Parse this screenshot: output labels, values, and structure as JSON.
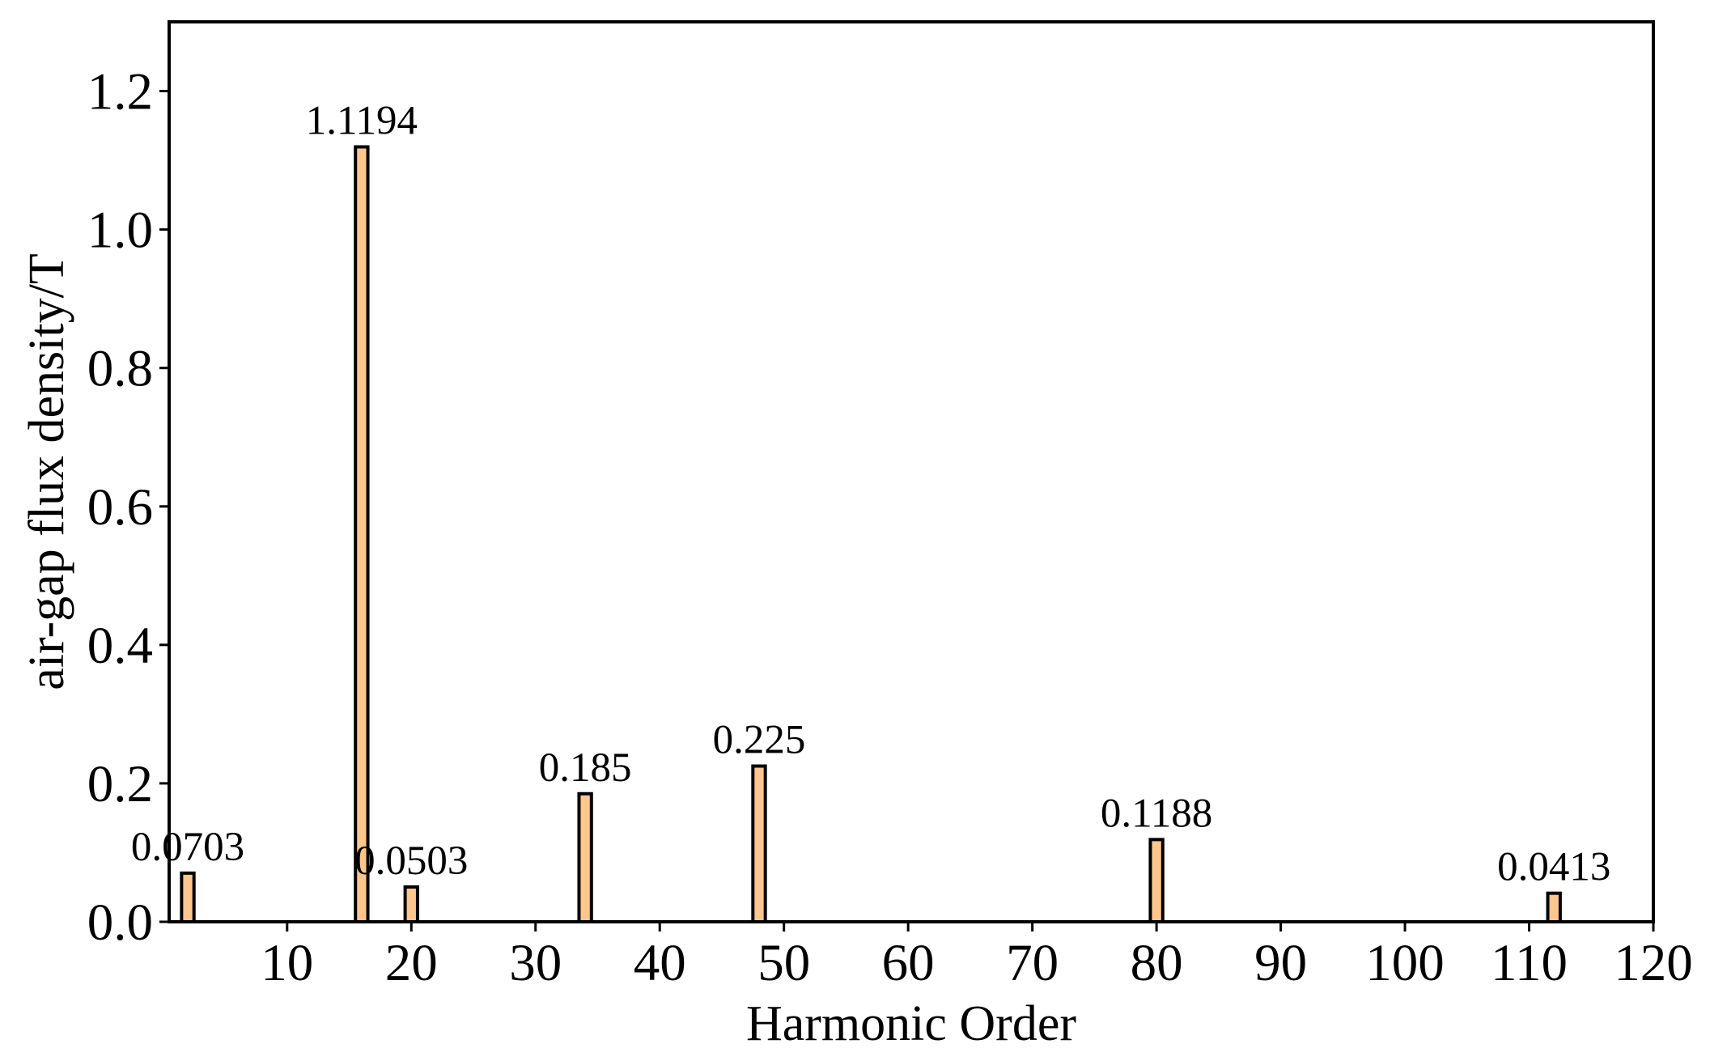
{
  "chart_data": {
    "type": "bar",
    "x_label": "Harmonic Order",
    "y_label": "air-gap flux density/T",
    "x": [
      2,
      16,
      20,
      34,
      48,
      80,
      112
    ],
    "values": [
      0.0703,
      1.1194,
      0.0503,
      0.185,
      0.225,
      0.1188,
      0.0413
    ],
    "color": "#fdc68e",
    "bar_width": 1,
    "xlim": [
      0.5,
      120
    ],
    "xticks": [
      10,
      20,
      30,
      40,
      50,
      60,
      70,
      80,
      90,
      100,
      110,
      120
    ],
    "ylim": [
      0,
      1.3
    ],
    "yticks": [
      {
        "value": 0,
        "label": "0.0"
      },
      0.2,
      0.4,
      0.6,
      0.8,
      {
        "value": 1,
        "label": "1.0"
      },
      1.2
    ]
  }
}
